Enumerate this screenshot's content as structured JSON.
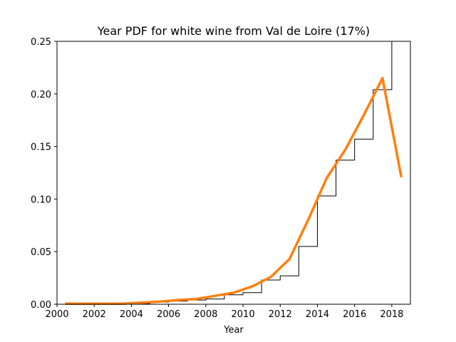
{
  "chart_data": {
    "type": "line",
    "title": "Year PDF for white wine from Val de Loire (17%)",
    "xlabel": "Year",
    "ylabel": "",
    "xlim": [
      2000,
      2019
    ],
    "ylim": [
      0,
      0.25
    ],
    "xticks": [
      "2000",
      "2002",
      "2004",
      "2006",
      "2008",
      "2010",
      "2012",
      "2014",
      "2016",
      "2018"
    ],
    "yticks": [
      "0.00",
      "0.05",
      "0.10",
      "0.15",
      "0.20",
      "0.25"
    ],
    "grid": false,
    "series": [
      {
        "kind": "step",
        "color": "#000000",
        "x": [
          2000.5,
          2001,
          2002,
          2003,
          2004,
          2005,
          2006,
          2007,
          2008,
          2009,
          2010,
          2011,
          2012,
          2013,
          2014,
          2015,
          2016,
          2017,
          2018,
          2019
        ],
        "y": [
          0.0005,
          0.0005,
          0.0005,
          0.0005,
          0.0005,
          0.002,
          0.003,
          0.004,
          0.005,
          0.009,
          0.011,
          0.023,
          0.027,
          0.055,
          0.103,
          0.137,
          0.157,
          0.204,
          0.25,
          0.25
        ]
      },
      {
        "kind": "line",
        "color": "#ff7f0e",
        "x": [
          2000.5,
          2001.5,
          2002.5,
          2003.5,
          2004.5,
          2005.5,
          2006.5,
          2007.5,
          2008.5,
          2009.5,
          2010.5,
          2011.5,
          2012.5,
          2013.5,
          2014.5,
          2015.5,
          2016.5,
          2017.5,
          2018.5
        ],
        "y": [
          0.0005,
          0.0005,
          0.0005,
          0.0005,
          0.0015,
          0.0025,
          0.004,
          0.005,
          0.008,
          0.011,
          0.017,
          0.026,
          0.043,
          0.08,
          0.12,
          0.147,
          0.18,
          0.215,
          0.122
        ]
      }
    ]
  }
}
